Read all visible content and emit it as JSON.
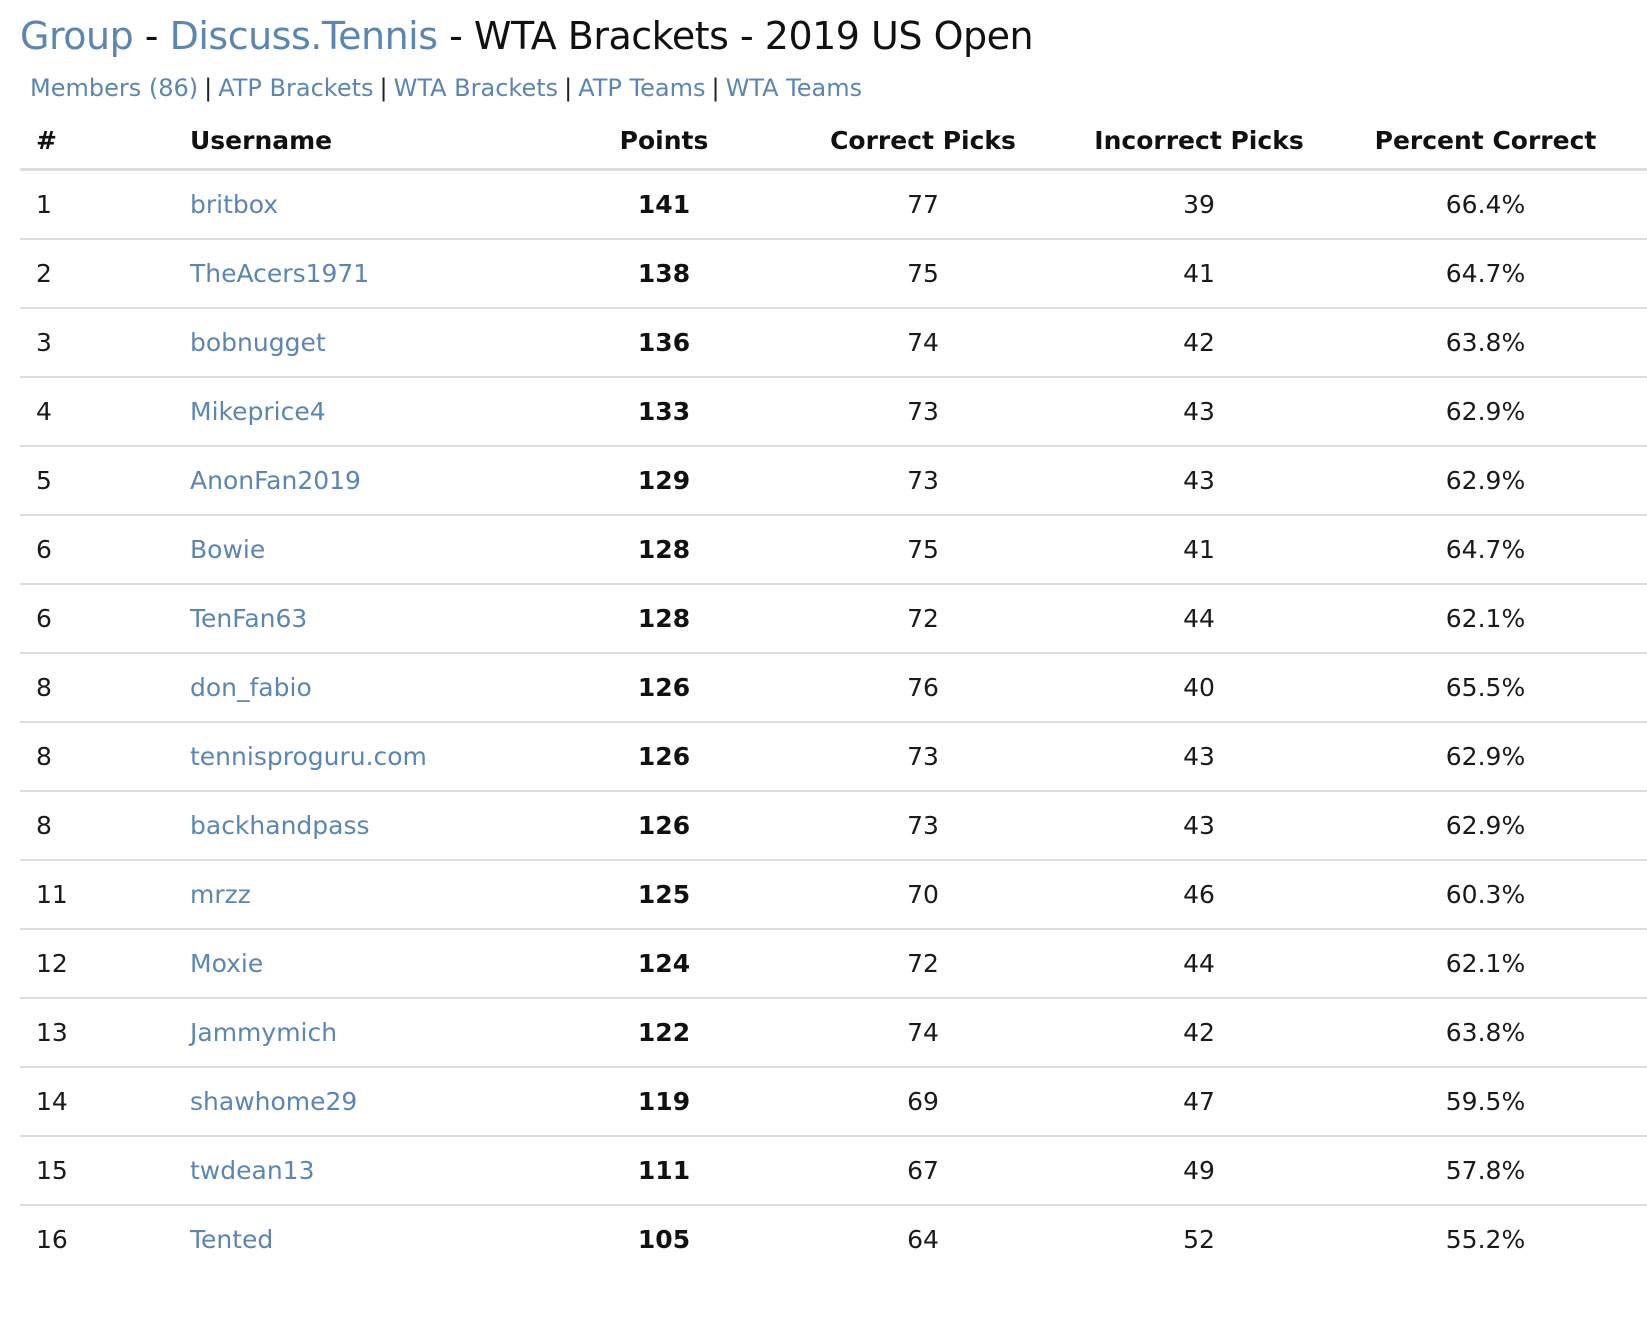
{
  "header": {
    "breadcrumb_group": "Group",
    "separator": " - ",
    "breadcrumb_community": "Discuss.Tennis",
    "title_rest": " - WTA Brackets - 2019 US Open"
  },
  "nav": {
    "items": [
      {
        "label": "Members (86)"
      },
      {
        "label": "ATP Brackets"
      },
      {
        "label": "WTA Brackets"
      },
      {
        "label": "ATP Teams"
      },
      {
        "label": "WTA Teams"
      }
    ],
    "divider": "|"
  },
  "table": {
    "columns": [
      "#",
      "Username",
      "Points",
      "Correct Picks",
      "Incorrect Picks",
      "Percent Correct"
    ],
    "rows": [
      {
        "rank": "1",
        "username": "britbox",
        "points": "141",
        "correct": "77",
        "incorrect": "39",
        "percent": "66.4%"
      },
      {
        "rank": "2",
        "username": "TheAcers1971",
        "points": "138",
        "correct": "75",
        "incorrect": "41",
        "percent": "64.7%"
      },
      {
        "rank": "3",
        "username": "bobnugget",
        "points": "136",
        "correct": "74",
        "incorrect": "42",
        "percent": "63.8%"
      },
      {
        "rank": "4",
        "username": "Mikeprice4",
        "points": "133",
        "correct": "73",
        "incorrect": "43",
        "percent": "62.9%"
      },
      {
        "rank": "5",
        "username": "AnonFan2019",
        "points": "129",
        "correct": "73",
        "incorrect": "43",
        "percent": "62.9%"
      },
      {
        "rank": "6",
        "username": "Bowie",
        "points": "128",
        "correct": "75",
        "incorrect": "41",
        "percent": "64.7%"
      },
      {
        "rank": "6",
        "username": "TenFan63",
        "points": "128",
        "correct": "72",
        "incorrect": "44",
        "percent": "62.1%"
      },
      {
        "rank": "8",
        "username": "don_fabio",
        "points": "126",
        "correct": "76",
        "incorrect": "40",
        "percent": "65.5%"
      },
      {
        "rank": "8",
        "username": "tennisproguru.com",
        "points": "126",
        "correct": "73",
        "incorrect": "43",
        "percent": "62.9%"
      },
      {
        "rank": "8",
        "username": "backhandpass",
        "points": "126",
        "correct": "73",
        "incorrect": "43",
        "percent": "62.9%"
      },
      {
        "rank": "11",
        "username": "mrzz",
        "points": "125",
        "correct": "70",
        "incorrect": "46",
        "percent": "60.3%"
      },
      {
        "rank": "12",
        "username": "Moxie",
        "points": "124",
        "correct": "72",
        "incorrect": "44",
        "percent": "62.1%"
      },
      {
        "rank": "13",
        "username": "Jammymich",
        "points": "122",
        "correct": "74",
        "incorrect": "42",
        "percent": "63.8%"
      },
      {
        "rank": "14",
        "username": "shawhome29",
        "points": "119",
        "correct": "69",
        "incorrect": "47",
        "percent": "59.5%"
      },
      {
        "rank": "15",
        "username": "twdean13",
        "points": "111",
        "correct": "67",
        "incorrect": "49",
        "percent": "57.8%"
      },
      {
        "rank": "16",
        "username": "Tented",
        "points": "105",
        "correct": "64",
        "incorrect": "52",
        "percent": "55.2%"
      }
    ]
  },
  "colors": {
    "link": "#5b86b4",
    "text": "#111111",
    "divider": "#dddddd",
    "background": "#ffffff"
  }
}
